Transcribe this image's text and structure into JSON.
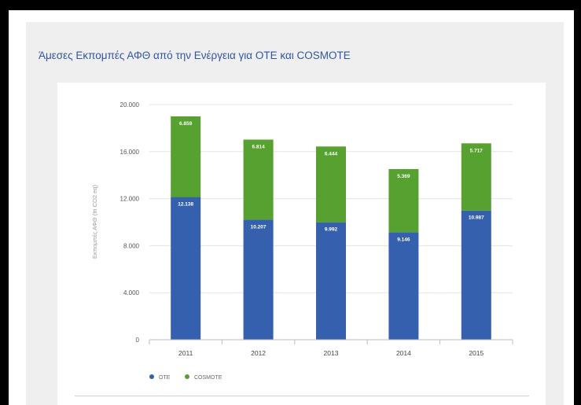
{
  "page": {
    "title": "Άμεσες Εκπομπές ΑΦΘ από την Ενέργεια για ΟΤΕ και COSMOTE"
  },
  "colors": {
    "ote": "#3560ad",
    "cosmote": "#56a12f",
    "title": "#2f56a4"
  },
  "chart_data": {
    "type": "bar",
    "stacked": true,
    "title": "Άμεσες Εκπομπές ΑΦΘ από την Ενέργεια για ΟΤΕ και COSMOTE",
    "ylabel": "Εκπομπές ΑΦΘ (tn CO2 eq)",
    "xlabel": "",
    "categories": [
      "2011",
      "2012",
      "2013",
      "2014",
      "2015"
    ],
    "series": [
      {
        "name": "ΟΤΕ",
        "values": [
          12138,
          10207,
          9992,
          9146,
          10987
        ],
        "labels": [
          "12.138",
          "10.207",
          "9.992",
          "9.146",
          "10.987"
        ]
      },
      {
        "name": "COSMOTE",
        "values": [
          6859,
          6814,
          6444,
          5369,
          5717
        ],
        "labels": [
          "6.859",
          "6.814",
          "6.444",
          "5.369",
          "5.717"
        ]
      }
    ],
    "ylim": [
      0,
      20000
    ],
    "yticks": [
      0,
      4000,
      8000,
      12000,
      16000,
      20000
    ],
    "ytick_labels": [
      "0",
      "4.000",
      "8.000",
      "12.000",
      "16.000",
      "20.000"
    ],
    "grid": true,
    "legend": "bottom-left"
  }
}
